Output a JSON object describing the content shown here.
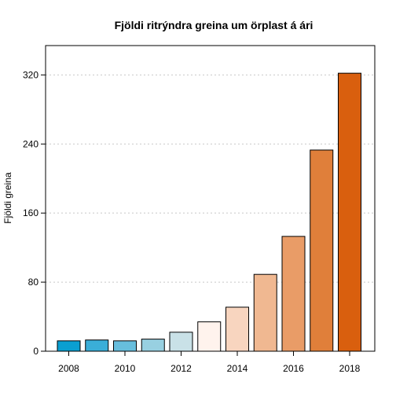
{
  "chart_data": {
    "type": "bar",
    "title": "Fjöldi ritrýndra greina um örplast á ári",
    "xlabel": "",
    "ylabel": "Fjöldi greina",
    "categories": [
      "2008",
      "2009",
      "2010",
      "2011",
      "2012",
      "2013",
      "2014",
      "2015",
      "2016",
      "2017",
      "2018"
    ],
    "values": [
      12,
      13,
      12,
      14,
      22,
      34,
      51,
      89,
      133,
      233,
      322
    ],
    "colors": [
      "#0a9fd1",
      "#3aaed8",
      "#67bedd",
      "#98d0e1",
      "#c9e1e7",
      "#fff3ed",
      "#f8d5bf",
      "#f0b891",
      "#e99c67",
      "#e07f3a",
      "#d95f0e"
    ],
    "ylim": [
      0,
      354
    ],
    "yticks": [
      0,
      80,
      160,
      240,
      320
    ],
    "xtick_labels": [
      "2008",
      "2010",
      "2012",
      "2014",
      "2016",
      "2018"
    ],
    "grid": "horizontal dotted",
    "legend": "none"
  }
}
